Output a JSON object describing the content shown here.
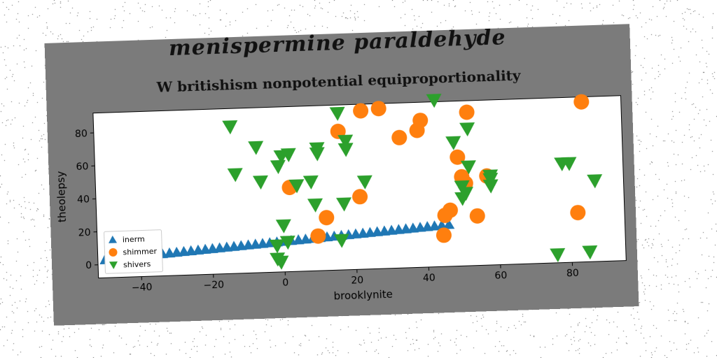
{
  "chart_data": {
    "type": "scatter",
    "suptitle": "menispermine paraldehyde",
    "title": "W britishism nonpotential equiproportionality",
    "xlabel": "brooklynite",
    "ylabel": "theolepsy",
    "xlim": [
      -52,
      95
    ],
    "ylim": [
      -8,
      92
    ],
    "xticks": [
      -40,
      -20,
      0,
      20,
      40,
      60,
      80
    ],
    "yticks": [
      0,
      20,
      40,
      60,
      80
    ],
    "legend_position": "lower left",
    "series": [
      {
        "name": "inerm",
        "marker": "triangle-up",
        "color": "#1f77b4",
        "points": [
          [
            -50,
            3.0
          ],
          [
            -48,
            3.3
          ],
          [
            -46,
            3.6
          ],
          [
            -44,
            3.9
          ],
          [
            -42,
            4.2
          ],
          [
            -40,
            4.5
          ],
          [
            -38,
            4.8
          ],
          [
            -36,
            5.1
          ],
          [
            -34,
            5.4
          ],
          [
            -32,
            5.7
          ],
          [
            -30,
            6.0
          ],
          [
            -28,
            6.3
          ],
          [
            -26,
            6.6
          ],
          [
            -24,
            6.9
          ],
          [
            -22,
            7.2
          ],
          [
            -20,
            7.5
          ],
          [
            -18,
            7.8
          ],
          [
            -16,
            8.1
          ],
          [
            -14,
            8.4
          ],
          [
            -12,
            8.7
          ],
          [
            -10,
            9.0
          ],
          [
            -8,
            9.3
          ],
          [
            -6,
            9.6
          ],
          [
            -4,
            9.9
          ],
          [
            -2,
            10.2
          ],
          [
            0,
            10.5
          ],
          [
            2,
            10.8
          ],
          [
            4,
            11.1
          ],
          [
            6,
            11.4
          ],
          [
            8,
            11.7
          ],
          [
            10,
            12.0
          ],
          [
            12,
            12.3
          ],
          [
            14,
            12.6
          ],
          [
            16,
            12.9
          ],
          [
            18,
            13.2
          ],
          [
            20,
            13.5
          ],
          [
            22,
            13.8
          ],
          [
            24,
            14.1
          ],
          [
            26,
            14.4
          ],
          [
            28,
            14.7
          ],
          [
            30,
            15.0
          ],
          [
            32,
            15.3
          ],
          [
            34,
            15.6
          ],
          [
            36,
            15.9
          ],
          [
            38,
            16.2
          ],
          [
            40,
            16.5
          ],
          [
            42,
            16.8
          ],
          [
            44,
            17.1
          ],
          [
            46,
            17.4
          ]
        ]
      },
      {
        "name": "shimmer",
        "marker": "circle",
        "color": "#ff7f0e",
        "points": [
          [
            2,
            43
          ],
          [
            9.5,
            13
          ],
          [
            12,
            24
          ],
          [
            16,
            76
          ],
          [
            21.5,
            36
          ],
          [
            22.5,
            88
          ],
          [
            27.5,
            89
          ],
          [
            33,
            71
          ],
          [
            38,
            75
          ],
          [
            39,
            81
          ],
          [
            44.5,
            11
          ],
          [
            45,
            23
          ],
          [
            46.5,
            26
          ],
          [
            49,
            58
          ],
          [
            50,
            46
          ],
          [
            51,
            42
          ],
          [
            52,
            85
          ],
          [
            54,
            22
          ],
          [
            57,
            46
          ],
          [
            82,
            22
          ],
          [
            84,
            89
          ]
        ]
      },
      {
        "name": "shivers",
        "marker": "triangle-down",
        "color": "#2ca02c",
        "points": [
          [
            -14,
            81
          ],
          [
            -13,
            52
          ],
          [
            -7,
            68
          ],
          [
            -6,
            47
          ],
          [
            -2,
            8
          ],
          [
            -2,
            0
          ],
          [
            -1,
            -2
          ],
          [
            -1,
            56
          ],
          [
            0,
            20
          ],
          [
            0,
            62
          ],
          [
            1,
            10
          ],
          [
            2,
            63
          ],
          [
            4,
            44
          ],
          [
            8,
            46
          ],
          [
            9,
            32
          ],
          [
            10,
            63
          ],
          [
            10,
            66
          ],
          [
            16,
            87
          ],
          [
            16,
            10
          ],
          [
            17,
            32
          ],
          [
            18,
            70
          ],
          [
            18,
            65
          ],
          [
            23,
            45
          ],
          [
            43,
            93
          ],
          [
            48,
            67
          ],
          [
            50,
            40
          ],
          [
            50,
            33
          ],
          [
            51,
            36
          ],
          [
            52,
            75
          ],
          [
            52,
            52
          ],
          [
            58,
            44
          ],
          [
            58,
            40
          ],
          [
            58,
            46
          ],
          [
            76,
            -3
          ],
          [
            78,
            52
          ],
          [
            80,
            52
          ],
          [
            85,
            -2
          ],
          [
            87,
            41
          ]
        ]
      }
    ]
  }
}
